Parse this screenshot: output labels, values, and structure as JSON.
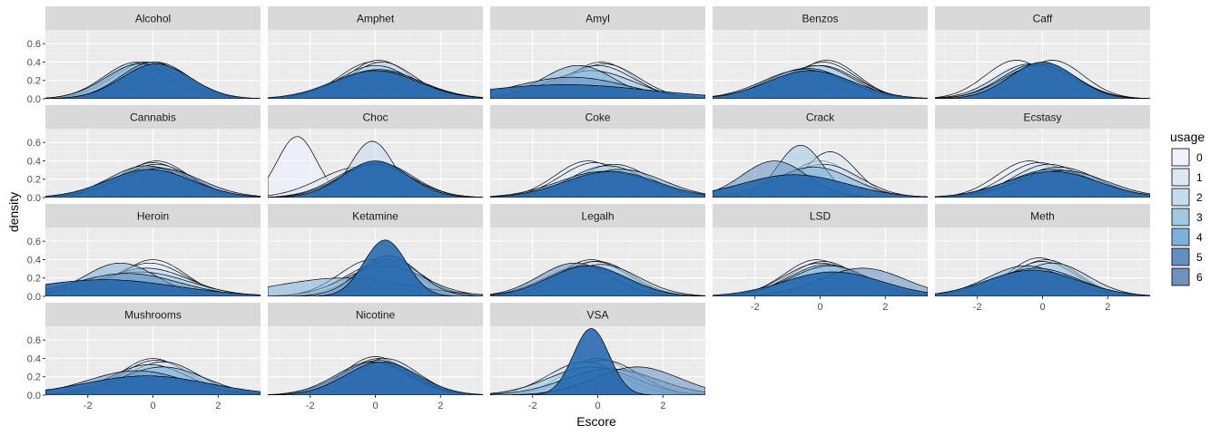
{
  "chart_data": {
    "type": "area",
    "subtype": "faceted density plot",
    "xlabel": "Escore",
    "ylabel": "density",
    "xlim": [
      -3.3,
      3.3
    ],
    "ylim": [
      0,
      0.75
    ],
    "x_ticks": [
      -2,
      0,
      2
    ],
    "x_tick_labels": [
      "-2",
      "0",
      "2"
    ],
    "y_ticks": [
      0,
      0.2,
      0.4,
      0.6
    ],
    "y_tick_labels": [
      "0.0",
      "0.2",
      "0.4",
      "0.6"
    ],
    "grid": true,
    "legend": {
      "title": "usage",
      "position": "right",
      "labels": [
        "0",
        "1",
        "2",
        "3",
        "4",
        "5",
        "6"
      ],
      "colors": [
        "#eff3ff",
        "#dbe7f5",
        "#c6dbef",
        "#9ecae1",
        "#7eb1d8",
        "#6490c1",
        "#7090bd"
      ]
    },
    "fill_bottom": "#2166ac",
    "panel_background": "#ebebeb",
    "strip_background": "#d9d9d9",
    "facets": [
      {
        "name": "Alcohol",
        "series": [
          {
            "usage": "0",
            "mean": -0.3,
            "sd": 1.0
          },
          {
            "usage": "1",
            "mean": 0.1,
            "sd": 1.0
          },
          {
            "usage": "2",
            "mean": -0.2,
            "sd": 1.0
          },
          {
            "usage": "3",
            "mean": -0.5,
            "sd": 1.0
          },
          {
            "usage": "4",
            "mean": -0.4,
            "sd": 1.05
          },
          {
            "usage": "5",
            "mean": 0.0,
            "sd": 1.0
          },
          {
            "usage": "6",
            "mean": 0.1,
            "sd": 1.05
          }
        ]
      },
      {
        "name": "Amphet",
        "series": [
          {
            "usage": "0",
            "mean": -0.1,
            "sd": 1.0
          },
          {
            "usage": "1",
            "mean": 0.1,
            "sd": 0.95
          },
          {
            "usage": "2",
            "mean": 0.2,
            "sd": 1.0
          },
          {
            "usage": "3",
            "mean": 0.0,
            "sd": 1.1
          },
          {
            "usage": "4",
            "mean": 0.1,
            "sd": 1.3
          },
          {
            "usage": "5",
            "mean": 0.1,
            "sd": 1.25
          },
          {
            "usage": "6",
            "mean": 0.0,
            "sd": 1.3
          }
        ]
      },
      {
        "name": "Amyl",
        "series": [
          {
            "usage": "0",
            "mean": 0.1,
            "sd": 1.0
          },
          {
            "usage": "1",
            "mean": 0.2,
            "sd": 1.05
          },
          {
            "usage": "2",
            "mean": 0.0,
            "sd": 1.1
          },
          {
            "usage": "3",
            "mean": -0.2,
            "sd": 1.3
          },
          {
            "usage": "4",
            "mean": -0.6,
            "sd": 1.1
          },
          {
            "usage": "5",
            "mean": -0.8,
            "sd": 1.7
          },
          {
            "usage": "6",
            "mean": -1.0,
            "sd": 2.6
          }
        ]
      },
      {
        "name": "Benzos",
        "series": [
          {
            "usage": "0",
            "mean": 0.2,
            "sd": 0.95
          },
          {
            "usage": "1",
            "mean": 0.1,
            "sd": 1.0
          },
          {
            "usage": "2",
            "mean": 0.0,
            "sd": 1.1
          },
          {
            "usage": "3",
            "mean": -0.1,
            "sd": 1.1
          },
          {
            "usage": "4",
            "mean": -0.4,
            "sd": 1.2
          },
          {
            "usage": "5",
            "mean": -0.5,
            "sd": 1.25
          },
          {
            "usage": "6",
            "mean": -0.3,
            "sd": 1.3
          }
        ]
      },
      {
        "name": "Caff",
        "series": [
          {
            "usage": "0",
            "mean": -0.8,
            "sd": 0.95
          },
          {
            "usage": "1",
            "mean": 0.3,
            "sd": 0.95
          },
          {
            "usage": "2",
            "mean": 0.0,
            "sd": 1.05
          },
          {
            "usage": "3",
            "mean": -0.4,
            "sd": 1.05
          },
          {
            "usage": "4",
            "mean": -0.2,
            "sd": 1.05
          },
          {
            "usage": "5",
            "mean": -0.1,
            "sd": 1.1
          },
          {
            "usage": "6",
            "mean": 0.0,
            "sd": 1.0
          }
        ]
      },
      {
        "name": "Cannabis",
        "series": [
          {
            "usage": "0",
            "mean": 0.1,
            "sd": 1.0
          },
          {
            "usage": "1",
            "mean": 0.0,
            "sd": 1.05
          },
          {
            "usage": "2",
            "mean": 0.1,
            "sd": 1.1
          },
          {
            "usage": "3",
            "mean": 0.0,
            "sd": 1.2
          },
          {
            "usage": "4",
            "mean": -0.2,
            "sd": 1.15
          },
          {
            "usage": "5",
            "mean": 0.2,
            "sd": 1.25
          },
          {
            "usage": "6",
            "mean": -0.1,
            "sd": 1.3
          }
        ]
      },
      {
        "name": "Choc",
        "series": [
          {
            "usage": "0",
            "mean": -2.4,
            "sd": 0.6
          },
          {
            "usage": "1",
            "mean": -0.5,
            "sd": 1.2
          },
          {
            "usage": "2",
            "mean": -0.1,
            "sd": 0.65
          },
          {
            "usage": "3",
            "mean": -0.1,
            "sd": 1.1
          },
          {
            "usage": "4",
            "mean": 0.1,
            "sd": 1.05
          },
          {
            "usage": "5",
            "mean": 0.0,
            "sd": 1.1
          },
          {
            "usage": "6",
            "mean": 0.0,
            "sd": 1.0
          }
        ]
      },
      {
        "name": "Coke",
        "series": [
          {
            "usage": "0",
            "mean": -0.3,
            "sd": 1.0
          },
          {
            "usage": "1",
            "mean": -0.1,
            "sd": 1.05
          },
          {
            "usage": "2",
            "mean": 0.5,
            "sd": 1.1
          },
          {
            "usage": "3",
            "mean": 0.3,
            "sd": 1.15
          },
          {
            "usage": "4",
            "mean": 0.7,
            "sd": 1.3
          },
          {
            "usage": "5",
            "mean": 0.2,
            "sd": 1.4
          },
          {
            "usage": "6",
            "mean": 0.4,
            "sd": 1.4
          }
        ]
      },
      {
        "name": "Crack",
        "series": [
          {
            "usage": "0",
            "mean": 0.0,
            "sd": 1.0
          },
          {
            "usage": "1",
            "mean": 0.3,
            "sd": 0.8
          },
          {
            "usage": "2",
            "mean": 0.1,
            "sd": 1.1
          },
          {
            "usage": "3",
            "mean": -0.6,
            "sd": 0.7
          },
          {
            "usage": "4",
            "mean": -0.2,
            "sd": 1.2
          },
          {
            "usage": "5",
            "mean": -1.4,
            "sd": 1.0
          },
          {
            "usage": "6",
            "mean": -0.8,
            "sd": 1.6
          }
        ]
      },
      {
        "name": "Ecstasy",
        "series": [
          {
            "usage": "0",
            "mean": -0.4,
            "sd": 1.0
          },
          {
            "usage": "1",
            "mean": -0.1,
            "sd": 1.05
          },
          {
            "usage": "2",
            "mean": 0.2,
            "sd": 1.1
          },
          {
            "usage": "3",
            "mean": 0.5,
            "sd": 1.2
          },
          {
            "usage": "4",
            "mean": 0.3,
            "sd": 1.3
          },
          {
            "usage": "5",
            "mean": 0.6,
            "sd": 1.35
          },
          {
            "usage": "6",
            "mean": 0.3,
            "sd": 1.4
          }
        ]
      },
      {
        "name": "Heroin",
        "series": [
          {
            "usage": "0",
            "mean": 0.0,
            "sd": 1.0
          },
          {
            "usage": "1",
            "mean": -0.1,
            "sd": 1.1
          },
          {
            "usage": "2",
            "mean": -0.2,
            "sd": 1.3
          },
          {
            "usage": "3",
            "mean": -0.4,
            "sd": 1.5
          },
          {
            "usage": "4",
            "mean": -1.0,
            "sd": 1.1
          },
          {
            "usage": "5",
            "mean": -0.8,
            "sd": 1.6
          },
          {
            "usage": "6",
            "mean": -1.5,
            "sd": 2.2
          }
        ]
      },
      {
        "name": "Ketamine",
        "series": [
          {
            "usage": "0",
            "mean": -0.1,
            "sd": 1.0
          },
          {
            "usage": "1",
            "mean": 0.2,
            "sd": 1.1
          },
          {
            "usage": "2",
            "mean": 0.4,
            "sd": 1.0
          },
          {
            "usage": "3",
            "mean": 0.3,
            "sd": 1.2
          },
          {
            "usage": "4",
            "mean": -1.0,
            "sd": 2.0
          },
          {
            "usage": "5",
            "mean": 0.4,
            "sd": 0.9
          },
          {
            "usage": "6",
            "mean": 0.3,
            "sd": 0.65
          }
        ]
      },
      {
        "name": "Legalh",
        "series": [
          {
            "usage": "0",
            "mean": -0.2,
            "sd": 1.0
          },
          {
            "usage": "1",
            "mean": 0.0,
            "sd": 1.05
          },
          {
            "usage": "2",
            "mean": -0.1,
            "sd": 1.05
          },
          {
            "usage": "3",
            "mean": 0.1,
            "sd": 1.15
          },
          {
            "usage": "4",
            "mean": -0.4,
            "sd": 1.2
          },
          {
            "usage": "5",
            "mean": -0.7,
            "sd": 1.1
          },
          {
            "usage": "6",
            "mean": -0.3,
            "sd": 1.2
          }
        ]
      },
      {
        "name": "LSD",
        "series": [
          {
            "usage": "0",
            "mean": -0.1,
            "sd": 1.0
          },
          {
            "usage": "1",
            "mean": 0.1,
            "sd": 1.05
          },
          {
            "usage": "2",
            "mean": 0.0,
            "sd": 1.1
          },
          {
            "usage": "3",
            "mean": 0.2,
            "sd": 1.15
          },
          {
            "usage": "4",
            "mean": 0.3,
            "sd": 1.2
          },
          {
            "usage": "5",
            "mean": 1.3,
            "sd": 1.3
          },
          {
            "usage": "6",
            "mean": 0.4,
            "sd": 1.5
          }
        ]
      },
      {
        "name": "Meth",
        "series": [
          {
            "usage": "0",
            "mean": -0.1,
            "sd": 0.95
          },
          {
            "usage": "1",
            "mean": 0.1,
            "sd": 1.0
          },
          {
            "usage": "2",
            "mean": 0.0,
            "sd": 1.05
          },
          {
            "usage": "3",
            "mean": 0.3,
            "sd": 1.1
          },
          {
            "usage": "4",
            "mean": -0.5,
            "sd": 1.2
          },
          {
            "usage": "5",
            "mean": -0.2,
            "sd": 1.3
          },
          {
            "usage": "6",
            "mean": -0.3,
            "sd": 1.4
          }
        ]
      },
      {
        "name": "Mushrooms",
        "series": [
          {
            "usage": "0",
            "mean": 0.0,
            "sd": 1.0
          },
          {
            "usage": "1",
            "mean": 0.1,
            "sd": 1.05
          },
          {
            "usage": "2",
            "mean": 0.3,
            "sd": 1.1
          },
          {
            "usage": "3",
            "mean": -0.1,
            "sd": 1.2
          },
          {
            "usage": "4",
            "mean": 0.3,
            "sd": 1.3
          },
          {
            "usage": "5",
            "mean": -0.5,
            "sd": 1.5
          },
          {
            "usage": "6",
            "mean": -0.2,
            "sd": 1.9
          }
        ]
      },
      {
        "name": "Nicotine",
        "series": [
          {
            "usage": "0",
            "mean": 0.0,
            "sd": 0.95
          },
          {
            "usage": "1",
            "mean": 0.1,
            "sd": 1.0
          },
          {
            "usage": "2",
            "mean": 0.3,
            "sd": 1.0
          },
          {
            "usage": "3",
            "mean": 0.1,
            "sd": 1.05
          },
          {
            "usage": "4",
            "mean": 0.0,
            "sd": 1.1
          },
          {
            "usage": "5",
            "mean": -0.1,
            "sd": 1.1
          },
          {
            "usage": "6",
            "mean": 0.2,
            "sd": 1.1
          }
        ]
      },
      {
        "name": "VSA",
        "series": [
          {
            "usage": "0",
            "mean": 0.0,
            "sd": 1.0
          },
          {
            "usage": "1",
            "mean": 0.2,
            "sd": 1.05
          },
          {
            "usage": "2",
            "mean": -0.4,
            "sd": 1.1
          },
          {
            "usage": "3",
            "mean": -0.2,
            "sd": 1.3
          },
          {
            "usage": "4",
            "mean": 0.4,
            "sd": 1.4
          },
          {
            "usage": "5",
            "mean": 1.2,
            "sd": 1.3
          },
          {
            "usage": "6",
            "mean": -0.2,
            "sd": 0.55
          }
        ]
      }
    ]
  }
}
